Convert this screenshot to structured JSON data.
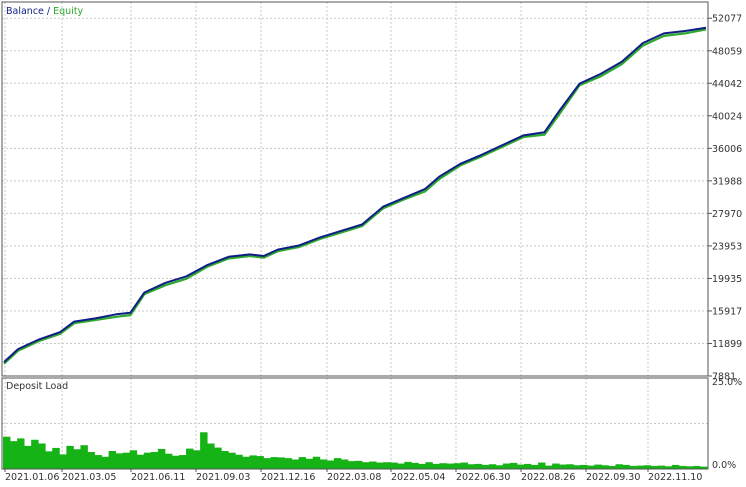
{
  "colors": {
    "balance": "#0f1e86",
    "equity": "#2ea82e",
    "deposit_load": "#16b316",
    "grid": "#c8c8c8",
    "frame": "#555555",
    "text": "#333333"
  },
  "chart_data": [
    {
      "type": "line",
      "title": "",
      "legend": {
        "placement": "top-left",
        "balance_label": "Balance",
        "separator": " / ",
        "equity_label": "Equity"
      },
      "ylim": [
        7881,
        54082
      ],
      "y_ticks": [
        "52077",
        "48059",
        "44042",
        "40024",
        "36006",
        "31988",
        "27970",
        "23953",
        "19935",
        "15917",
        "11899",
        "7881"
      ],
      "grid": true,
      "series": [
        {
          "name": "Balance",
          "points": [
            [
              0,
              9600
            ],
            [
              0.02,
              11200
            ],
            [
              0.05,
              12400
            ],
            [
              0.08,
              13300
            ],
            [
              0.1,
              14600
            ],
            [
              0.13,
              15000
            ],
            [
              0.16,
              15500
            ],
            [
              0.18,
              15700
            ],
            [
              0.2,
              18200
            ],
            [
              0.23,
              19400
            ],
            [
              0.26,
              20200
            ],
            [
              0.29,
              21600
            ],
            [
              0.32,
              22600
            ],
            [
              0.35,
              22900
            ],
            [
              0.37,
              22700
            ],
            [
              0.39,
              23500
            ],
            [
              0.42,
              24000
            ],
            [
              0.45,
              25000
            ],
            [
              0.48,
              25800
            ],
            [
              0.51,
              26600
            ],
            [
              0.54,
              28800
            ],
            [
              0.57,
              29900
            ],
            [
              0.6,
              31000
            ],
            [
              0.62,
              32500
            ],
            [
              0.65,
              34100
            ],
            [
              0.68,
              35200
            ],
            [
              0.71,
              36400
            ],
            [
              0.74,
              37600
            ],
            [
              0.77,
              38000
            ],
            [
              0.79,
              40500
            ],
            [
              0.82,
              44000
            ],
            [
              0.85,
              45200
            ],
            [
              0.88,
              46700
            ],
            [
              0.91,
              49000
            ],
            [
              0.94,
              50200
            ],
            [
              0.97,
              50500
            ],
            [
              1,
              50900
            ]
          ]
        },
        {
          "name": "Equity",
          "points": [
            [
              0,
              9400
            ],
            [
              0.02,
              11000
            ],
            [
              0.05,
              12200
            ],
            [
              0.08,
              13100
            ],
            [
              0.1,
              14400
            ],
            [
              0.13,
              14800
            ],
            [
              0.16,
              15200
            ],
            [
              0.18,
              15400
            ],
            [
              0.2,
              18000
            ],
            [
              0.23,
              19100
            ],
            [
              0.26,
              19900
            ],
            [
              0.29,
              21400
            ],
            [
              0.32,
              22400
            ],
            [
              0.35,
              22700
            ],
            [
              0.37,
              22500
            ],
            [
              0.39,
              23300
            ],
            [
              0.42,
              23800
            ],
            [
              0.45,
              24800
            ],
            [
              0.48,
              25600
            ],
            [
              0.51,
              26400
            ],
            [
              0.54,
              28600
            ],
            [
              0.57,
              29700
            ],
            [
              0.6,
              30700
            ],
            [
              0.62,
              32200
            ],
            [
              0.65,
              33900
            ],
            [
              0.68,
              35000
            ],
            [
              0.71,
              36200
            ],
            [
              0.74,
              37400
            ],
            [
              0.77,
              37700
            ],
            [
              0.79,
              40100
            ],
            [
              0.82,
              43800
            ],
            [
              0.85,
              44900
            ],
            [
              0.88,
              46400
            ],
            [
              0.91,
              48700
            ],
            [
              0.94,
              49900
            ],
            [
              0.97,
              50200
            ],
            [
              1,
              50700
            ]
          ]
        }
      ]
    },
    {
      "type": "area",
      "title": "",
      "legend": {
        "placement": "top-left",
        "label": "Deposit Load"
      },
      "ylim": [
        0,
        25
      ],
      "y_ticks": [
        "25.0%",
        "0.0%"
      ],
      "grid": true,
      "x_ticks": [
        "2021.01.06",
        "2021.03.05",
        "2021.06.11",
        "2021.09.03",
        "2021.12.16",
        "2022.03.08",
        "2022.05.04",
        "2022.06.30",
        "2022.08.26",
        "2022.09.30",
        "2022.11.10"
      ],
      "series": [
        {
          "name": "Deposit Load",
          "values_percent": [
            9.5,
            8.2,
            9,
            6.8,
            8.6,
            7.5,
            5.2,
            6.2,
            4.3,
            6.8,
            5.8,
            7,
            5,
            4.1,
            3.6,
            5.3,
            4.6,
            4.8,
            5.5,
            4.2,
            4.8,
            5,
            5.9,
            4.5,
            3.9,
            4.1,
            6,
            5.5,
            10.8,
            7.5,
            6.3,
            5.3,
            4.8,
            4.2,
            3.6,
            4,
            3.8,
            3.2,
            3.5,
            3.4,
            3.2,
            2.8,
            3.5,
            3,
            3.6,
            2.8,
            2.5,
            3.2,
            2.8,
            2.3,
            2.4,
            2,
            2.2,
            1.9,
            2,
            1.9,
            1.6,
            2.1,
            1.8,
            1.5,
            2,
            1.5,
            1.7,
            1.6,
            1.7,
            1.9,
            1.4,
            1.5,
            1.2,
            1.4,
            1.1,
            1.6,
            1.8,
            1.3,
            1.5,
            1.2,
            1.9,
            1,
            1.6,
            1.3,
            1.4,
            1.1,
            1.2,
            1,
            1.3,
            1.1,
            0.9,
            1.4,
            1.2,
            0.9,
            1,
            1.1,
            0.9,
            1,
            0.8,
            1.2,
            0.9,
            0.8,
            0.9,
            0.7
          ]
        }
      ]
    }
  ]
}
